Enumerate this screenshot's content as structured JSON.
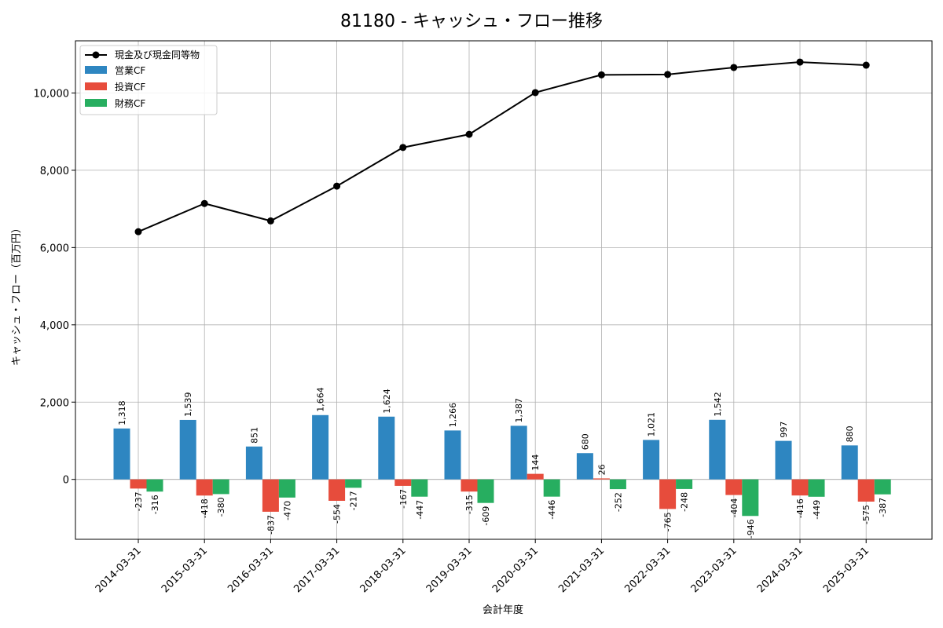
{
  "chart_data": {
    "type": "bar+line",
    "title": "81180 - キャッシュ・フロー推移",
    "xlabel": "会計年度",
    "ylabel": "キャッシュ・フロー（百万円）",
    "ylim": [
      -1550,
      11350
    ],
    "yticks": [
      0,
      2000,
      4000,
      6000,
      8000,
      10000
    ],
    "ytick_labels": [
      "0",
      "2,000",
      "4,000",
      "6,000",
      "8,000",
      "10,000"
    ],
    "grid": true,
    "legend_position": "top-left",
    "categories": [
      "2014-03-31",
      "2015-03-31",
      "2016-03-31",
      "2017-03-31",
      "2018-03-31",
      "2019-03-31",
      "2020-03-31",
      "2021-03-31",
      "2022-03-31",
      "2023-03-31",
      "2024-03-31",
      "2025-03-31"
    ],
    "line_series": {
      "name": "現金及び現金同等物",
      "color": "#000000",
      "values": [
        6410,
        7140,
        6690,
        7590,
        8590,
        8930,
        10010,
        10470,
        10480,
        10660,
        10800,
        10720
      ]
    },
    "series": [
      {
        "name": "営業CF",
        "color": "#2e86c1",
        "values": [
          1318,
          1539,
          851,
          1664,
          1624,
          1266,
          1387,
          680,
          1021,
          1542,
          997,
          880
        ],
        "labels": [
          "1,318",
          "1,539",
          "851",
          "1,664",
          "1,624",
          "1,266",
          "1,387",
          "680",
          "1,021",
          "1,542",
          "997",
          "880"
        ]
      },
      {
        "name": "投資CF",
        "color": "#e74c3c",
        "values": [
          -237,
          -418,
          -837,
          -554,
          -167,
          -315,
          144,
          26,
          -765,
          -404,
          -416,
          -575
        ],
        "labels": [
          "-237",
          "-418",
          "-837",
          "-554",
          "-167",
          "-315",
          "144",
          "26",
          "-765",
          "-404",
          "-416",
          "-575"
        ]
      },
      {
        "name": "財務CF",
        "color": "#27ae60",
        "values": [
          -316,
          -380,
          -470,
          -217,
          -447,
          -609,
          -446,
          -252,
          -248,
          -946,
          -449,
          -387
        ],
        "labels": [
          "-316",
          "-380",
          "-470",
          "-217",
          "-447",
          "-609",
          "-446",
          "-252",
          "-248",
          "-946",
          "-449",
          "-387"
        ]
      }
    ]
  }
}
